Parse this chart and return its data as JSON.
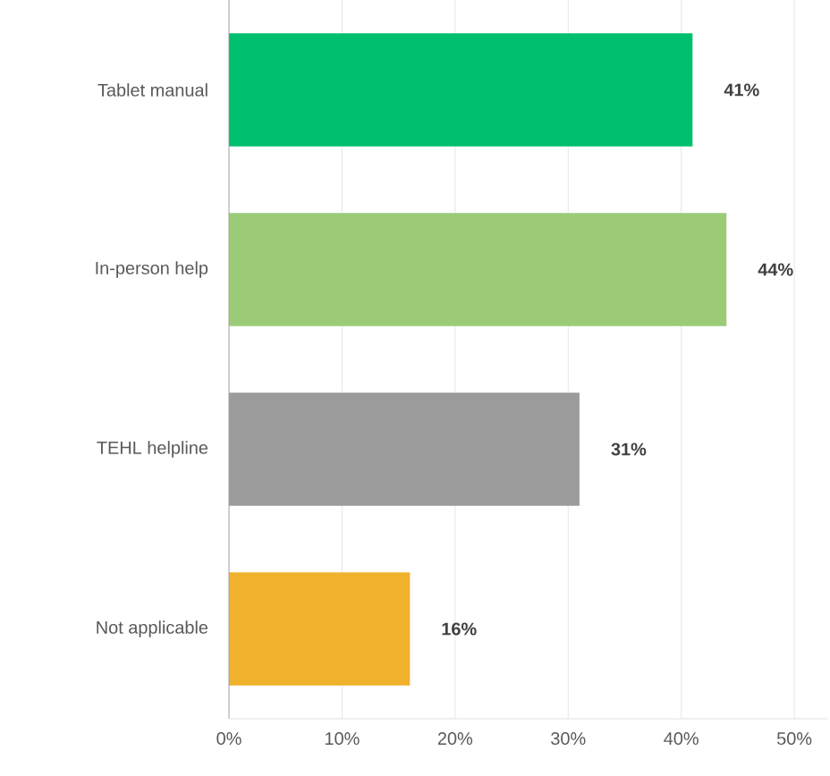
{
  "chart_data": {
    "type": "bar",
    "orientation": "horizontal",
    "categories": [
      "Tablet manual",
      "In-person help",
      "TEHL helpline",
      "Not applicable"
    ],
    "values": [
      41,
      44,
      31,
      16
    ],
    "value_labels": [
      "41%",
      "44%",
      "31%",
      "16%"
    ],
    "colors": [
      "#00bf6f",
      "#9bcb77",
      "#9b9b9b",
      "#f0b12d"
    ],
    "xlim": [
      0,
      53
    ],
    "xticks": [
      {
        "value": 0,
        "label": "0%"
      },
      {
        "value": 10,
        "label": "10%"
      },
      {
        "value": 20,
        "label": "20%"
      },
      {
        "value": 30,
        "label": "30%"
      },
      {
        "value": 40,
        "label": "40%"
      },
      {
        "value": 50,
        "label": "50%"
      }
    ],
    "grid": "x"
  }
}
